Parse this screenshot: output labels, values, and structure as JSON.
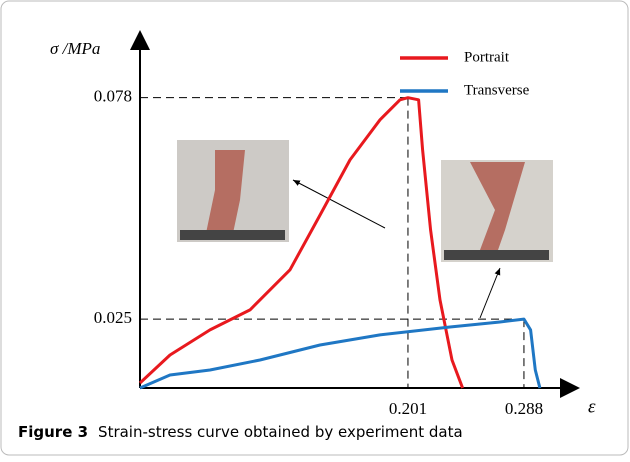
{
  "chart_data": {
    "type": "line",
    "y_label": "σ /MPa",
    "x_label": "ε",
    "xlim": [
      0,
      0.326
    ],
    "ylim": [
      0.0085,
      0.093
    ],
    "xticks": [
      0.201,
      0.288
    ],
    "yticks": [
      0.078,
      0.025
    ],
    "legend": "upper right",
    "series": [
      {
        "name": "Portrait",
        "color": "#e8191e",
        "x": [
          0,
          0.0225,
          0.0525,
          0.0825,
          0.1125,
          0.135,
          0.1575,
          0.18,
          0.195,
          0.201,
          0.209,
          0.212,
          0.218,
          0.225,
          0.234,
          0.242
        ],
        "values": [
          0.0097,
          0.0164,
          0.0224,
          0.0272,
          0.0368,
          0.0499,
          0.0631,
          0.0727,
          0.0775,
          0.078,
          0.0775,
          0.0655,
          0.0463,
          0.0296,
          0.0152,
          0.0085
        ]
      },
      {
        "name": "Transverse",
        "color": "#1f77c4",
        "x": [
          0,
          0.0225,
          0.0525,
          0.09,
          0.135,
          0.18,
          0.2325,
          0.27,
          0.288,
          0.293,
          0.2965,
          0.3
        ],
        "values": [
          0.0085,
          0.0116,
          0.0128,
          0.0152,
          0.0188,
          0.0212,
          0.0231,
          0.0243,
          0.025,
          0.0224,
          0.0128,
          0.0085
        ]
      }
    ],
    "caption_label": "Figure 3",
    "caption": "Strain-stress curve obtained by experiment data"
  }
}
